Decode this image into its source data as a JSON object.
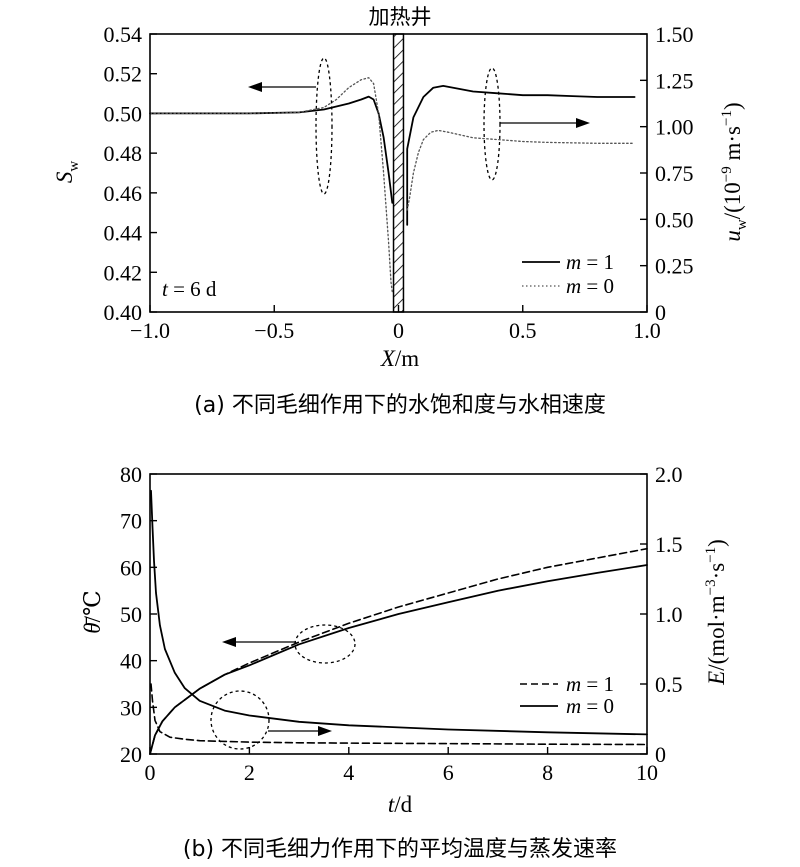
{
  "chart_data": [
    {
      "id": "a",
      "type": "line",
      "caption": "(a) 不同毛细作用下的水饱和度与水相速度",
      "heater_label": "加热井",
      "annotation": "t = 6 d",
      "xlabel": "X/m",
      "ylabel_left": "S_w",
      "ylabel_right": "u_w/(10^-9 m·s^-1)",
      "xlim": [
        -1.0,
        1.0
      ],
      "ylim_left": [
        0.4,
        0.54
      ],
      "ylim_right": [
        0,
        1.5
      ],
      "xticks": [
        "−1.0",
        "−0.5",
        "0",
        "0.5",
        "1.0"
      ],
      "xtick_values": [
        -1.0,
        -0.5,
        0,
        0.5,
        1.0
      ],
      "yticks_left": [
        "0.40",
        "0.42",
        "0.44",
        "0.46",
        "0.48",
        "0.50",
        "0.52",
        "0.54"
      ],
      "yticks_left_values": [
        0.4,
        0.42,
        0.44,
        0.46,
        0.48,
        0.5,
        0.52,
        0.54
      ],
      "yticks_right": [
        "0",
        "0.25",
        "0.50",
        "0.75",
        "1.00",
        "1.25",
        "1.50"
      ],
      "yticks_right_values": [
        0,
        0.25,
        0.5,
        0.75,
        1.0,
        1.25,
        1.5
      ],
      "heater_x": [
        -0.02,
        0.02
      ],
      "legend": [
        "m = 1",
        "m = 0"
      ],
      "legend_position": "bottom-right",
      "series": [
        {
          "name": "m = 1",
          "axis": "left",
          "style": "solid",
          "x": [
            -1.0,
            -0.6,
            -0.4,
            -0.3,
            -0.2,
            -0.15,
            -0.12,
            -0.1,
            -0.08,
            -0.06,
            -0.04,
            -0.025
          ],
          "y": [
            0.5,
            0.5,
            0.5005,
            0.502,
            0.505,
            0.507,
            0.5085,
            0.507,
            0.5,
            0.488,
            0.47,
            0.455
          ]
        },
        {
          "name": "m = 1",
          "axis": "right",
          "style": "solid",
          "x": [
            0.035,
            0.035,
            0.06,
            0.1,
            0.14,
            0.18,
            0.22,
            0.3,
            0.4,
            0.5,
            0.6,
            0.7,
            0.8,
            0.9,
            0.95
          ],
          "y": [
            0.47,
            0.88,
            1.05,
            1.16,
            1.21,
            1.22,
            1.21,
            1.19,
            1.18,
            1.17,
            1.17,
            1.165,
            1.16,
            1.16,
            1.16
          ]
        },
        {
          "name": "m = 0",
          "axis": "left",
          "style": "dotted",
          "x": [
            -1.0,
            -0.6,
            -0.4,
            -0.3,
            -0.25,
            -0.2,
            -0.15,
            -0.12,
            -0.1,
            -0.08,
            -0.06,
            -0.04,
            -0.03,
            -0.025
          ],
          "y": [
            0.5,
            0.5,
            0.5005,
            0.503,
            0.507,
            0.513,
            0.517,
            0.518,
            0.515,
            0.5,
            0.47,
            0.435,
            0.415,
            0.41
          ]
        },
        {
          "name": "m = 0",
          "axis": "right",
          "style": "dotted",
          "x": [
            0.035,
            0.045,
            0.06,
            0.08,
            0.1,
            0.13,
            0.16,
            0.2,
            0.3,
            0.4,
            0.5,
            0.6,
            0.8,
            0.95
          ],
          "y": [
            0.55,
            0.62,
            0.75,
            0.86,
            0.93,
            0.97,
            0.98,
            0.97,
            0.94,
            0.93,
            0.92,
            0.915,
            0.91,
            0.91
          ]
        }
      ]
    },
    {
      "id": "b",
      "type": "line",
      "caption": "(b) 不同毛细力作用下的平均温度与蒸发速率",
      "xlabel": "t/d",
      "ylabel_left": "θ̄/℃",
      "ylabel_right": "E/(mol·m^-3·s^-1)",
      "xlim": [
        0,
        10
      ],
      "ylim_left": [
        20,
        80
      ],
      "ylim_right": [
        0,
        2.0
      ],
      "xticks": [
        "0",
        "2",
        "4",
        "6",
        "8",
        "10"
      ],
      "xtick_values": [
        0,
        2,
        4,
        6,
        8,
        10
      ],
      "yticks_left": [
        "20",
        "30",
        "40",
        "50",
        "60",
        "70",
        "80"
      ],
      "yticks_left_values": [
        20,
        30,
        40,
        50,
        60,
        70,
        80
      ],
      "yticks_right": [
        "0",
        "0.5",
        "1.0",
        "1.5",
        "2.0"
      ],
      "yticks_right_values": [
        0,
        0.5,
        1.0,
        1.5,
        2.0
      ],
      "legend": [
        "m = 1",
        "m = 0"
      ],
      "legend_position": "right",
      "series": [
        {
          "name": "m = 1",
          "axis": "left",
          "style": "dashed",
          "x": [
            0,
            0.1,
            0.25,
            0.5,
            1,
            1.5,
            2,
            3,
            4,
            5,
            6,
            7,
            8,
            9,
            10
          ],
          "y": [
            20,
            24,
            27,
            30,
            34,
            37,
            39.5,
            44,
            48,
            51.5,
            54.5,
            57.5,
            60,
            62,
            64
          ]
        },
        {
          "name": "m = 0",
          "axis": "left",
          "style": "solid",
          "x": [
            0,
            0.1,
            0.25,
            0.5,
            1,
            1.5,
            2,
            3,
            4,
            5,
            6,
            7,
            8,
            9,
            10
          ],
          "y": [
            20,
            24,
            27,
            30,
            34,
            37,
            39,
            43.5,
            47,
            50,
            52.5,
            55,
            57,
            58.8,
            60.5
          ]
        },
        {
          "name": "m = 1",
          "axis": "right",
          "style": "dashed",
          "x": [
            0.02,
            0.05,
            0.1,
            0.2,
            0.4,
            0.7,
            1,
            1.5,
            2,
            3,
            4,
            6,
            8,
            10
          ],
          "y": [
            0.5,
            0.38,
            0.24,
            0.16,
            0.12,
            0.105,
            0.095,
            0.09,
            0.085,
            0.08,
            0.078,
            0.074,
            0.07,
            0.068
          ]
        },
        {
          "name": "m = 0",
          "axis": "right",
          "style": "solid",
          "x": [
            0.02,
            0.05,
            0.08,
            0.12,
            0.2,
            0.3,
            0.5,
            0.7,
            1,
            1.5,
            2,
            3,
            4,
            6,
            8,
            10
          ],
          "y": [
            1.88,
            1.62,
            1.38,
            1.15,
            0.92,
            0.75,
            0.58,
            0.47,
            0.38,
            0.31,
            0.275,
            0.23,
            0.205,
            0.175,
            0.155,
            0.14
          ]
        }
      ]
    }
  ]
}
